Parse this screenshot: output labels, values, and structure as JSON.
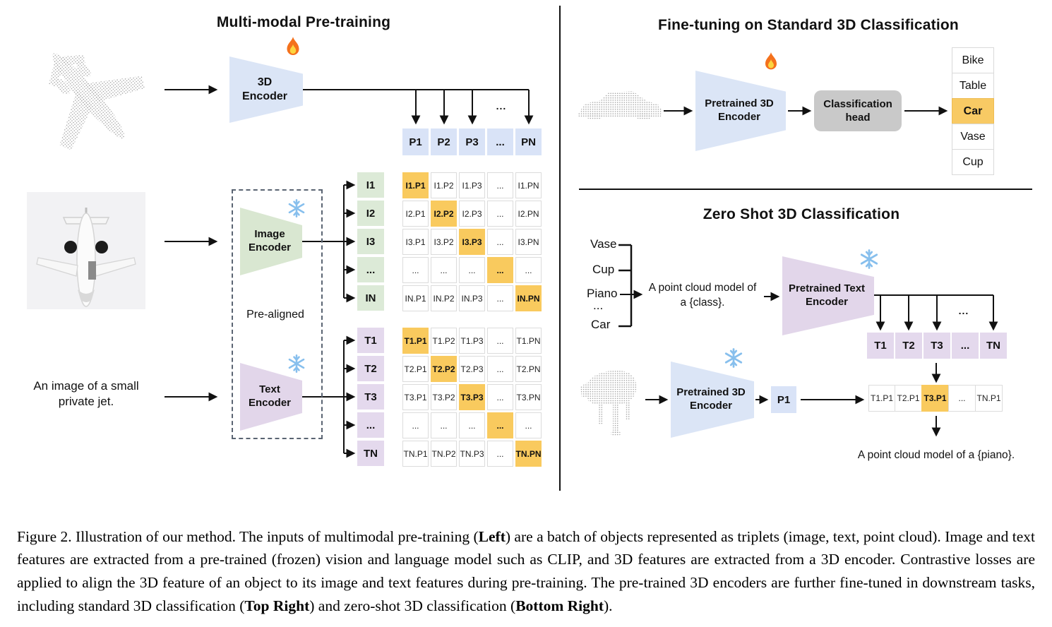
{
  "pretraining": {
    "title": "Multi-modal Pre-training",
    "encoder3d_label": "3D Encoder",
    "image_encoder_label": "Image Encoder",
    "text_encoder_label": "Text Encoder",
    "prealigned_label": "Pre-aligned",
    "jet_caption": "An image of a small private jet.",
    "ellipsis": "...",
    "p_row": [
      "P1",
      "P2",
      "P3",
      "...",
      "PN"
    ],
    "i_col": [
      "I1",
      "I2",
      "I3",
      "...",
      "IN"
    ],
    "t_col": [
      "T1",
      "T2",
      "T3",
      "...",
      "TN"
    ],
    "i_matrix": [
      [
        "I1.P1",
        "I1.P2",
        "I1.P3",
        "...",
        "I1.PN"
      ],
      [
        "I2.P1",
        "I2.P2",
        "I2.P3",
        "...",
        "I2.PN"
      ],
      [
        "I3.P1",
        "I3.P2",
        "I3.P3",
        "...",
        "I3.PN"
      ],
      [
        "...",
        "...",
        "...",
        "...",
        "..."
      ],
      [
        "IN.P1",
        "IN.P2",
        "IN.P3",
        "...",
        "IN.PN"
      ]
    ],
    "t_matrix": [
      [
        "T1.P1",
        "T1.P2",
        "T1.P3",
        "...",
        "T1.PN"
      ],
      [
        "T2.P1",
        "T2.P2",
        "T2.P3",
        "...",
        "T2.PN"
      ],
      [
        "T3.P1",
        "T3.P2",
        "T3.P3",
        "...",
        "T3.PN"
      ],
      [
        "...",
        "...",
        "...",
        "...",
        "..."
      ],
      [
        "TN.P1",
        "TN.P2",
        "TN.P3",
        "...",
        "TN.PN"
      ]
    ]
  },
  "finetuning": {
    "title": "Fine-tuning on Standard 3D Classification",
    "encoder_label": "Pretrained 3D Encoder",
    "head_label": "Classification head",
    "classes": [
      {
        "label": "Bike"
      },
      {
        "label": "Table"
      },
      {
        "label": "Car",
        "highlight": true
      },
      {
        "label": "Vase"
      },
      {
        "label": "Cup"
      }
    ]
  },
  "zeroshot": {
    "title": "Zero Shot 3D Classification",
    "prompt_classes": [
      "Vase",
      "Cup",
      "Piano",
      "...",
      "Car"
    ],
    "prompt_line1": "A point cloud model of",
    "prompt_line2": "a {class}.",
    "text_encoder_label": "Pretrained Text Encoder",
    "encoder3d_label": "Pretrained 3D Encoder",
    "p_cell": "P1",
    "ellipsis": "...",
    "t_row": [
      "T1",
      "T2",
      "T3",
      "...",
      "TN"
    ],
    "tp_row": [
      {
        "label": "T1.P1"
      },
      {
        "label": "T2.P1"
      },
      {
        "label": "T3.P1",
        "highlight": true
      },
      {
        "label": "..."
      },
      {
        "label": "TN.P1"
      }
    ],
    "result_text": "A point cloud model of a {piano}."
  },
  "icons": {
    "trainable": "fire-icon",
    "frozen": "snowflake-icon"
  },
  "colors": {
    "encoder_blue": "#dbe5f6",
    "encoder_green": "#d9e7d1",
    "encoder_purple": "#e2d6ea",
    "cell_blue": "#d9e3f7",
    "cell_green": "#dcead7",
    "cell_purple": "#e4d9ed",
    "highlight_orange": "#f9ca5e",
    "head_gray": "#c9c9c9",
    "pointcloud_gray": "#9e9e9e"
  },
  "caption": {
    "segments": [
      {
        "text": "Figure 2. Illustration of our method. The inputs of multimodal pre-training ("
      },
      {
        "text": "Left",
        "bold": true
      },
      {
        "text": ") are a batch of objects represented as triplets (image, text, point cloud). Image and text features are extracted from a pre-trained (frozen) vision and language model such as CLIP, and 3D features are extracted from a 3D encoder. Contrastive losses are applied to align the 3D feature of an object to its image and text features during pre-training. The pre-trained 3D encoders are further fine-tuned in downstream tasks, including standard 3D classification ("
      },
      {
        "text": "Top Right",
        "bold": true
      },
      {
        "text": ") and zero-shot 3D classification ("
      },
      {
        "text": "Bottom Right",
        "bold": true
      },
      {
        "text": ")."
      }
    ]
  }
}
